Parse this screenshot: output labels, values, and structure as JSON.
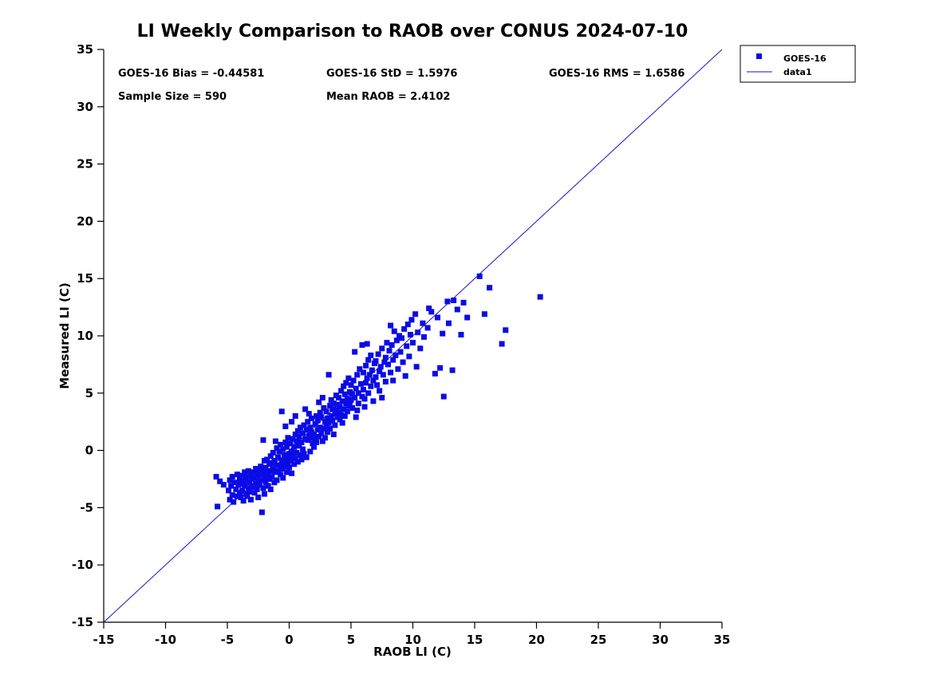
{
  "figure": {
    "stats": {
      "bias": "GOES-16 Bias = -0.44581",
      "std": "GOES-16 StD = 1.5976",
      "rms": "GOES-16 RMS = 1.6586",
      "sample_size": "Sample Size = 590",
      "mean_raob": "Mean RAOB = 2.4102"
    },
    "legend": {
      "entries": [
        {
          "label": "GOES-16",
          "marker": "square"
        },
        {
          "label": "data1",
          "marker": "line"
        }
      ]
    }
  },
  "chart_data": {
    "type": "scatter",
    "title": "LI Weekly Comparison to RAOB over CONUS 2024-07-10",
    "xlabel": "RAOB LI (C)",
    "ylabel": "Measured LI (C)",
    "xlim": [
      -15,
      35
    ],
    "ylim": [
      -15,
      35
    ],
    "xticks": [
      -15,
      -10,
      -5,
      0,
      5,
      10,
      15,
      20,
      25,
      30,
      35
    ],
    "yticks": [
      -15,
      -10,
      -5,
      0,
      5,
      10,
      15,
      20,
      25,
      30,
      35
    ],
    "grid": false,
    "legend_position": "outside-top-right",
    "marker_color": "#0b0bE6",
    "line_color": "#1515c8",
    "marker_size": 7,
    "reference_line": {
      "name": "data1",
      "from": [
        -15,
        -15
      ],
      "to": [
        35,
        35
      ]
    },
    "series": [
      {
        "name": "GOES-16",
        "points": [
          [
            -5.9,
            -2.3
          ],
          [
            -5.8,
            -4.9
          ],
          [
            -5.3,
            -3.0
          ],
          [
            -5.6,
            -2.7
          ],
          [
            -4.9,
            -3.5
          ],
          [
            -4.8,
            -2.6
          ],
          [
            -4.8,
            -4.3
          ],
          [
            -4.7,
            -3.1
          ],
          [
            -4.6,
            -2.3
          ],
          [
            -4.6,
            -3.9
          ],
          [
            -4.5,
            -4.5
          ],
          [
            -4.4,
            -2.8
          ],
          [
            -4.3,
            -3.4
          ],
          [
            -4.2,
            -2.1
          ],
          [
            -4.2,
            -4.0
          ],
          [
            -4.1,
            -3.0
          ],
          [
            -4.0,
            -2.5
          ],
          [
            -4.0,
            -3.7
          ],
          [
            -3.9,
            -2.9
          ],
          [
            -3.9,
            -4.1
          ],
          [
            -3.8,
            -2.2
          ],
          [
            -3.8,
            -3.5
          ],
          [
            -3.7,
            -2.7
          ],
          [
            -3.7,
            -4.4
          ],
          [
            -3.6,
            -3.1
          ],
          [
            -3.6,
            -1.9
          ],
          [
            -3.5,
            -2.6
          ],
          [
            -3.5,
            -3.8
          ],
          [
            -3.4,
            -2.3
          ],
          [
            -3.4,
            -4.0
          ],
          [
            -3.3,
            -3.3
          ],
          [
            -3.3,
            -1.8
          ],
          [
            -3.2,
            -2.8
          ],
          [
            -3.2,
            -3.6
          ],
          [
            -3.1,
            -2.1
          ],
          [
            -3.1,
            -4.3
          ],
          [
            -3.0,
            -2.5
          ],
          [
            -3.0,
            -3.2
          ],
          [
            -2.9,
            -1.9
          ],
          [
            -2.9,
            -3.1
          ],
          [
            -2.8,
            -2.4
          ],
          [
            -2.8,
            -3.7
          ],
          [
            -2.7,
            -1.6
          ],
          [
            -2.7,
            -2.9
          ],
          [
            -2.6,
            -2.2
          ],
          [
            -2.6,
            -3.4
          ],
          [
            -2.5,
            -1.8
          ],
          [
            -2.5,
            -2.7
          ],
          [
            -2.5,
            -4.1
          ],
          [
            -2.4,
            -2.0
          ],
          [
            -2.4,
            -3.0
          ],
          [
            -2.3,
            -1.4
          ],
          [
            -2.3,
            -2.6
          ],
          [
            -2.2,
            -5.4
          ],
          [
            -2.2,
            -2.1
          ],
          [
            -2.1,
            -3.3
          ],
          [
            -2.1,
            -1.7
          ],
          [
            -2.1,
            0.9
          ],
          [
            -2.0,
            -2.4
          ],
          [
            -2.0,
            -0.9
          ],
          [
            -2.0,
            -3.8
          ],
          [
            -1.9,
            -1.5
          ],
          [
            -1.9,
            -2.8
          ],
          [
            -1.8,
            -0.8
          ],
          [
            -1.8,
            -2.2
          ],
          [
            -1.7,
            -1.9
          ],
          [
            -1.7,
            -3.1
          ],
          [
            -1.6,
            -1.2
          ],
          [
            -1.6,
            -2.5
          ],
          [
            -1.5,
            -0.5
          ],
          [
            -1.5,
            -1.8
          ],
          [
            -1.5,
            -3.4
          ],
          [
            -1.4,
            -1.1
          ],
          [
            -1.4,
            -2.3
          ],
          [
            -1.3,
            -0.2
          ],
          [
            -1.3,
            -1.6
          ],
          [
            -1.2,
            -2.8
          ],
          [
            -1.2,
            -0.9
          ],
          [
            -1.1,
            -1.9
          ],
          [
            -1.1,
            0.8
          ],
          [
            -1.0,
            -1.3
          ],
          [
            -1.0,
            -2.6
          ],
          [
            -1.0,
            0.2
          ],
          [
            -0.9,
            -0.6
          ],
          [
            -0.9,
            -1.8
          ],
          [
            -0.8,
            -0.1
          ],
          [
            -0.8,
            -1.3
          ],
          [
            -0.7,
            -2.1
          ],
          [
            -0.7,
            0.5
          ],
          [
            -0.6,
            -0.9
          ],
          [
            -0.6,
            -1.6
          ],
          [
            -0.6,
            3.4
          ],
          [
            -0.5,
            0.1
          ],
          [
            -0.5,
            -1.1
          ],
          [
            -0.5,
            -2.4
          ],
          [
            -0.4,
            -0.4
          ],
          [
            -0.4,
            -1.4
          ],
          [
            -0.3,
            0.7
          ],
          [
            -0.3,
            -0.8
          ],
          [
            -0.3,
            2.1
          ],
          [
            -0.2,
            -1.9
          ],
          [
            -0.2,
            0.3
          ],
          [
            -0.1,
            -0.6
          ],
          [
            -0.1,
            -1.2
          ],
          [
            -0.1,
            1.1
          ],
          [
            0.0,
            -0.3
          ],
          [
            0.0,
            -1.5
          ],
          [
            0.1,
            0.6
          ],
          [
            0.1,
            -0.9
          ],
          [
            0.2,
            -0.1
          ],
          [
            0.2,
            -2.0
          ],
          [
            0.2,
            2.5
          ],
          [
            0.3,
            1.0
          ],
          [
            0.3,
            -0.5
          ],
          [
            0.4,
            0.3
          ],
          [
            0.4,
            -1.2
          ],
          [
            0.5,
            1.4
          ],
          [
            0.5,
            -0.7
          ],
          [
            0.5,
            3.0
          ],
          [
            0.6,
            0.8
          ],
          [
            0.6,
            -0.2
          ],
          [
            0.7,
            1.7
          ],
          [
            0.7,
            -1.0
          ],
          [
            0.8,
            0.4
          ],
          [
            0.8,
            1.2
          ],
          [
            0.9,
            -0.4
          ],
          [
            0.9,
            2.0
          ],
          [
            1.0,
            0.7
          ],
          [
            1.0,
            -0.8
          ],
          [
            1.1,
            1.5
          ],
          [
            1.1,
            0.1
          ],
          [
            1.2,
            2.2
          ],
          [
            1.2,
            -0.3
          ],
          [
            1.3,
            1.0
          ],
          [
            1.3,
            3.6
          ],
          [
            1.4,
            1.8
          ],
          [
            1.4,
            -0.6
          ],
          [
            1.5,
            2.5
          ],
          [
            1.5,
            0.9
          ],
          [
            1.6,
            1.3
          ],
          [
            1.6,
            3.2
          ],
          [
            1.7,
            2.0
          ],
          [
            1.7,
            -0.1
          ],
          [
            1.8,
            1.6
          ],
          [
            1.8,
            2.8
          ],
          [
            1.9,
            0.6
          ],
          [
            1.9,
            1.1
          ],
          [
            2.0,
            1.4
          ],
          [
            2.0,
            0.3
          ],
          [
            2.1,
            2.3
          ],
          [
            2.1,
            1.0
          ],
          [
            2.2,
            3.0
          ],
          [
            2.2,
            0.7
          ],
          [
            2.3,
            1.8
          ],
          [
            2.3,
            2.6
          ],
          [
            2.4,
            1.2
          ],
          [
            2.4,
            4.2
          ],
          [
            2.5,
            3.3
          ],
          [
            2.5,
            2.0
          ],
          [
            2.6,
            1.5
          ],
          [
            2.6,
            2.9
          ],
          [
            2.7,
            0.8
          ],
          [
            2.7,
            4.6
          ],
          [
            2.8,
            3.7
          ],
          [
            2.8,
            1.9
          ],
          [
            2.9,
            2.5
          ],
          [
            2.9,
            1.1
          ],
          [
            3.0,
            2.1
          ],
          [
            3.0,
            3.4
          ],
          [
            3.1,
            1.6
          ],
          [
            3.1,
            2.8
          ],
          [
            3.2,
            6.6
          ],
          [
            3.2,
            2.4
          ],
          [
            3.3,
            3.9
          ],
          [
            3.3,
            1.9
          ],
          [
            3.4,
            3.0
          ],
          [
            3.4,
            4.4
          ],
          [
            3.5,
            2.6
          ],
          [
            3.5,
            3.6
          ],
          [
            3.6,
            1.4
          ],
          [
            3.6,
            4.1
          ],
          [
            3.7,
            3.2
          ],
          [
            3.7,
            2.2
          ],
          [
            3.8,
            4.8
          ],
          [
            3.8,
            3.5
          ],
          [
            3.9,
            2.9
          ],
          [
            3.9,
            4.0
          ],
          [
            4.0,
            3.3
          ],
          [
            4.0,
            4.6
          ],
          [
            4.1,
            2.7
          ],
          [
            4.1,
            3.8
          ],
          [
            4.2,
            5.2
          ],
          [
            4.2,
            3.1
          ],
          [
            4.3,
            4.3
          ],
          [
            4.3,
            2.4
          ],
          [
            4.4,
            5.6
          ],
          [
            4.4,
            3.6
          ],
          [
            4.5,
            4.9
          ],
          [
            4.5,
            3.0
          ],
          [
            4.6,
            4.1
          ],
          [
            4.6,
            5.9
          ],
          [
            4.7,
            3.4
          ],
          [
            4.7,
            4.5
          ],
          [
            4.8,
            6.3
          ],
          [
            4.8,
            3.9
          ],
          [
            4.9,
            5.1
          ],
          [
            4.9,
            4.2
          ],
          [
            5.0,
            4.4
          ],
          [
            5.0,
            5.7
          ],
          [
            5.1,
            3.7
          ],
          [
            5.1,
            4.9
          ],
          [
            5.2,
            6.1
          ],
          [
            5.3,
            8.6
          ],
          [
            5.3,
            4.6
          ],
          [
            5.4,
            5.4
          ],
          [
            5.4,
            2.9
          ],
          [
            5.5,
            3.5
          ],
          [
            5.5,
            6.6
          ],
          [
            5.6,
            5.0
          ],
          [
            5.6,
            4.1
          ],
          [
            5.7,
            7.1
          ],
          [
            5.8,
            5.8
          ],
          [
            5.9,
            9.2
          ],
          [
            5.9,
            4.7
          ],
          [
            6.0,
            5.3
          ],
          [
            6.0,
            6.8
          ],
          [
            6.1,
            4.5
          ],
          [
            6.1,
            3.8
          ],
          [
            6.2,
            7.4
          ],
          [
            6.2,
            5.9
          ],
          [
            6.3,
            6.3
          ],
          [
            6.3,
            9.3
          ],
          [
            6.4,
            5.0
          ],
          [
            6.4,
            7.9
          ],
          [
            6.5,
            6.6
          ],
          [
            6.6,
            5.6
          ],
          [
            6.6,
            8.3
          ],
          [
            6.7,
            7.0
          ],
          [
            6.8,
            6.1
          ],
          [
            6.8,
            4.3
          ],
          [
            6.9,
            7.6
          ],
          [
            7.0,
            6.4
          ],
          [
            7.0,
            7.8
          ],
          [
            7.1,
            5.7
          ],
          [
            7.2,
            8.4
          ],
          [
            7.3,
            6.9
          ],
          [
            7.3,
            5.2
          ],
          [
            7.4,
            7.3
          ],
          [
            7.5,
            8.9
          ],
          [
            7.5,
            4.6
          ],
          [
            7.6,
            6.6
          ],
          [
            7.7,
            7.7
          ],
          [
            7.8,
            8.1
          ],
          [
            7.8,
            6.0
          ],
          [
            7.9,
            9.4
          ],
          [
            8.0,
            7.5
          ],
          [
            8.1,
            8.7
          ],
          [
            8.2,
            6.8
          ],
          [
            8.2,
            10.9
          ],
          [
            8.3,
            9.2
          ],
          [
            8.4,
            7.9
          ],
          [
            8.4,
            6.1
          ],
          [
            8.5,
            10.4
          ],
          [
            8.6,
            8.3
          ],
          [
            8.7,
            9.6
          ],
          [
            8.8,
            7.1
          ],
          [
            8.9,
            10.0
          ],
          [
            9.0,
            8.6
          ],
          [
            9.1,
            9.8
          ],
          [
            9.2,
            7.7
          ],
          [
            9.3,
            10.6
          ],
          [
            9.4,
            6.5
          ],
          [
            9.5,
            9.1
          ],
          [
            9.6,
            11.0
          ],
          [
            9.7,
            8.2
          ],
          [
            9.8,
            10.1
          ],
          [
            9.9,
            11.4
          ],
          [
            10.0,
            9.4
          ],
          [
            10.2,
            11.9
          ],
          [
            10.3,
            7.3
          ],
          [
            10.4,
            10.3
          ],
          [
            10.6,
            8.9
          ],
          [
            10.8,
            11.1
          ],
          [
            10.9,
            9.9
          ],
          [
            11.2,
            10.7
          ],
          [
            11.3,
            12.4
          ],
          [
            11.5,
            12.1
          ],
          [
            11.8,
            6.7
          ],
          [
            12.0,
            11.6
          ],
          [
            12.2,
            7.2
          ],
          [
            12.4,
            10.2
          ],
          [
            12.5,
            4.7
          ],
          [
            12.8,
            13.0
          ],
          [
            12.9,
            11.1
          ],
          [
            13.2,
            7.0
          ],
          [
            13.3,
            13.1
          ],
          [
            13.6,
            12.3
          ],
          [
            13.9,
            10.1
          ],
          [
            14.1,
            12.9
          ],
          [
            14.4,
            11.6
          ],
          [
            15.4,
            15.2
          ],
          [
            15.8,
            11.9
          ],
          [
            16.2,
            14.2
          ],
          [
            17.2,
            9.3
          ],
          [
            17.5,
            10.5
          ],
          [
            20.3,
            13.4
          ]
        ]
      }
    ]
  }
}
